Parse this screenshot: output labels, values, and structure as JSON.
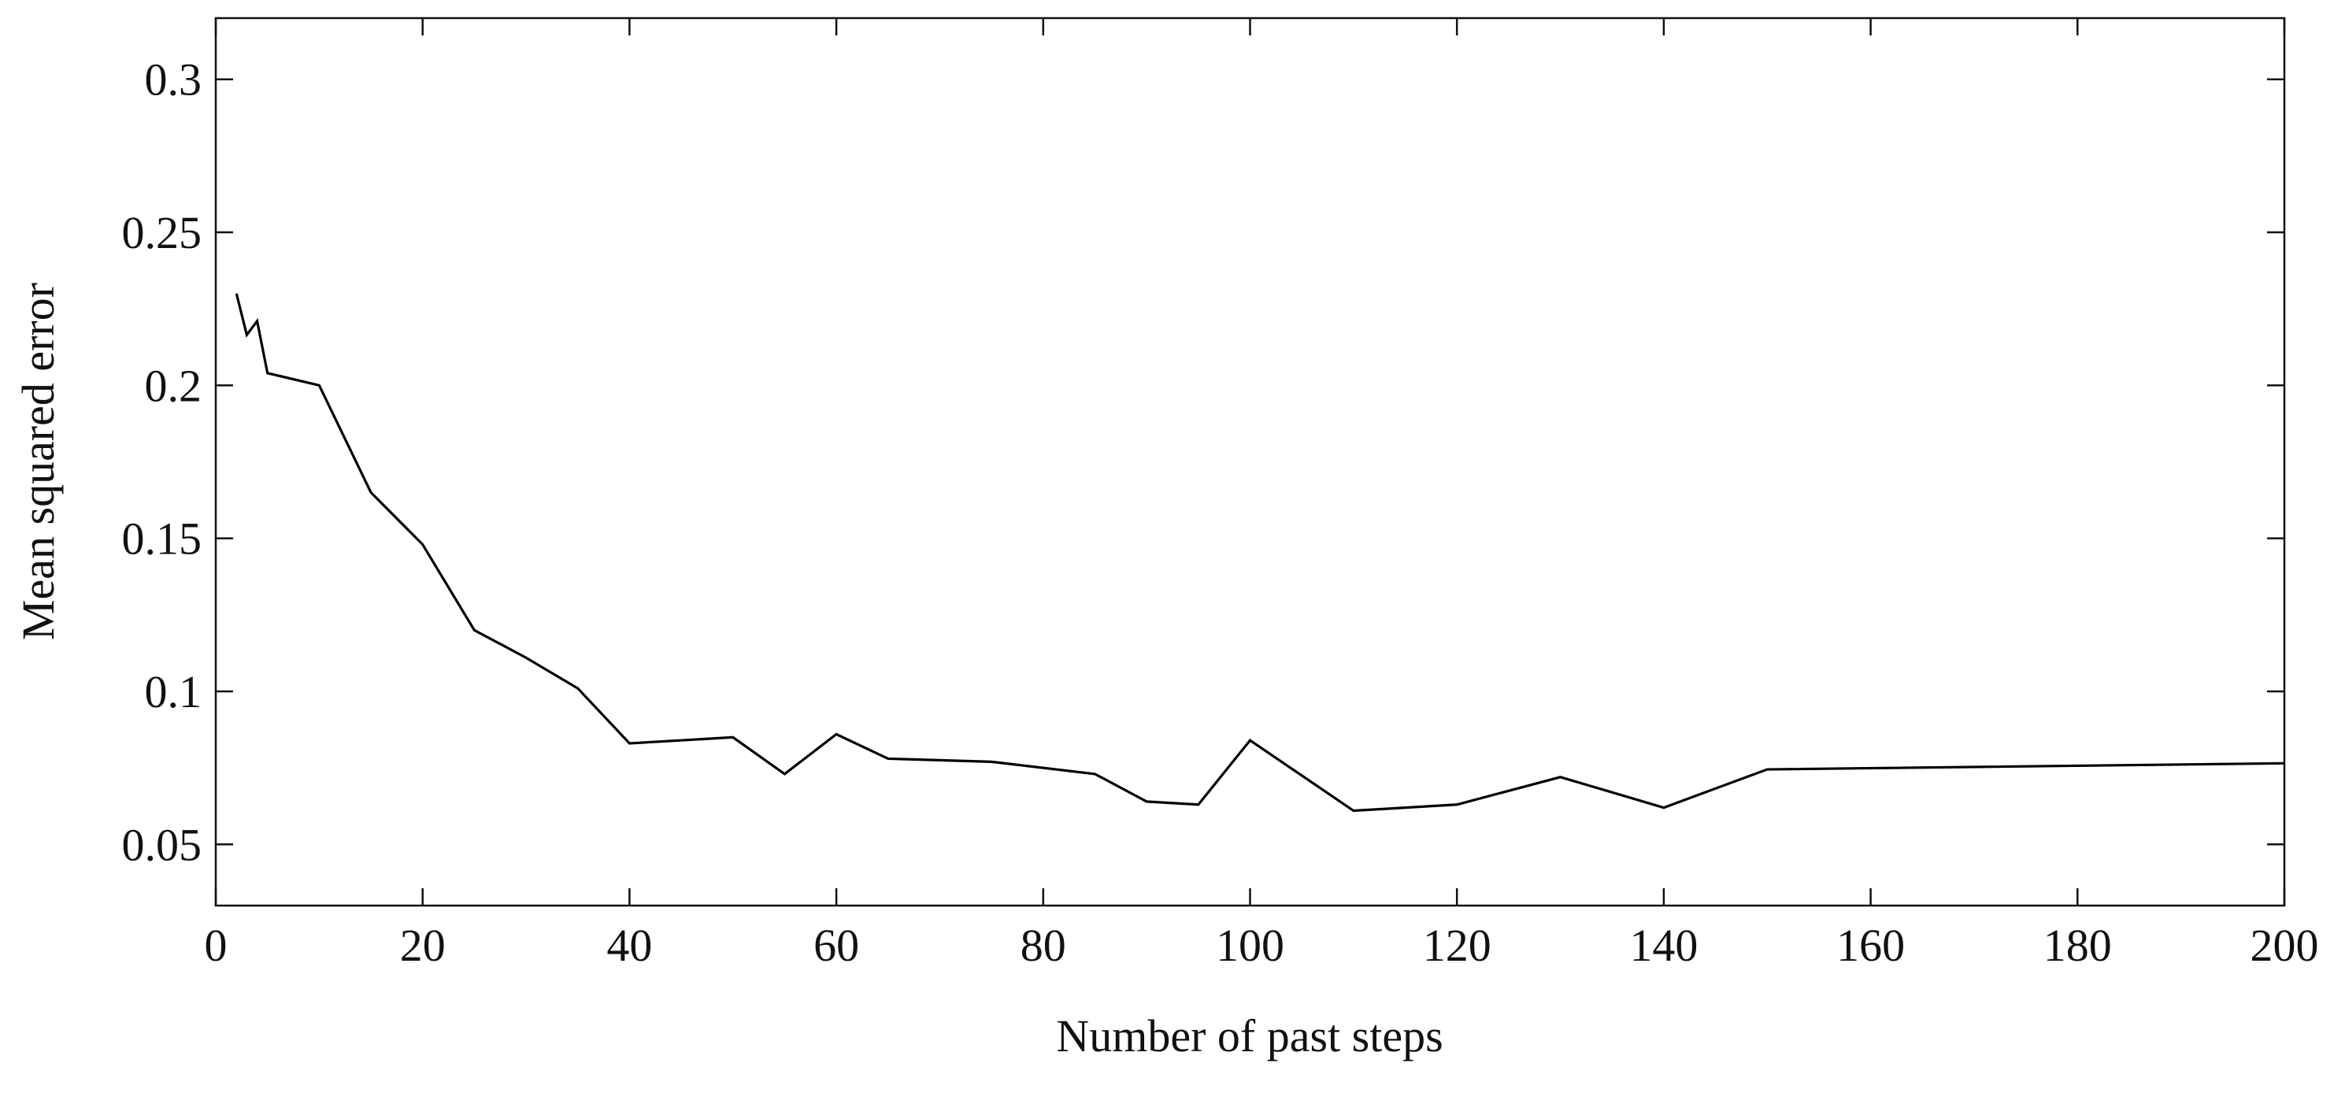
{
  "chart_data": {
    "type": "line",
    "x_label": "Number of past steps",
    "y_label": "Mean squared error",
    "x": [
      2,
      3,
      4,
      5,
      10,
      15,
      20,
      25,
      30,
      35,
      40,
      50,
      55,
      60,
      65,
      75,
      85,
      90,
      95,
      100,
      110,
      120,
      130,
      140,
      150,
      200
    ],
    "values": [
      0.23,
      0.2165,
      0.221,
      0.204,
      0.2,
      0.165,
      0.148,
      0.12,
      0.111,
      0.101,
      0.083,
      0.085,
      0.073,
      0.086,
      0.078,
      0.077,
      0.073,
      0.064,
      0.063,
      0.084,
      0.061,
      0.063,
      0.072,
      0.062,
      0.0745,
      0.0765
    ],
    "color": "#000000",
    "xlim": [
      0,
      200
    ],
    "xticks": [
      0,
      20,
      40,
      60,
      80,
      100,
      120,
      140,
      160,
      180,
      200
    ],
    "ylim": [
      0.03,
      0.32
    ],
    "yticks": [
      0.05,
      0.1,
      0.15,
      0.2,
      0.25,
      0.3
    ]
  }
}
